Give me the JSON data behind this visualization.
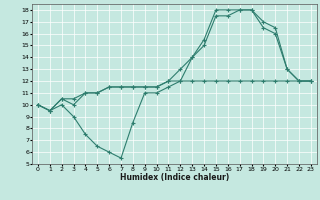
{
  "xlabel": "Humidex (Indice chaleur)",
  "background_color": "#c5e8e0",
  "line_color": "#2e7d6e",
  "xlim": [
    -0.5,
    23.5
  ],
  "ylim": [
    5,
    18.5
  ],
  "xticks": [
    0,
    1,
    2,
    3,
    4,
    5,
    6,
    7,
    8,
    9,
    10,
    11,
    12,
    13,
    14,
    15,
    16,
    17,
    18,
    19,
    20,
    21,
    22,
    23
  ],
  "yticks": [
    5,
    6,
    7,
    8,
    9,
    10,
    11,
    12,
    13,
    14,
    15,
    16,
    17,
    18
  ],
  "line1_x": [
    0,
    1,
    2,
    3,
    4,
    5,
    6,
    7,
    8,
    9,
    10,
    11,
    12,
    13,
    14,
    15,
    16,
    17,
    18,
    19,
    20,
    21,
    22,
    23
  ],
  "line1_y": [
    10,
    9.5,
    10.0,
    9.0,
    7.5,
    6.5,
    6.0,
    5.5,
    8.5,
    11.0,
    11.0,
    11.5,
    12.0,
    12.0,
    12.0,
    12.0,
    12.0,
    12.0,
    12.0,
    12.0,
    12.0,
    12.0,
    12.0,
    12.0
  ],
  "line2_x": [
    0,
    1,
    2,
    3,
    4,
    5,
    6,
    7,
    8,
    9,
    10,
    11,
    12,
    13,
    14,
    15,
    16,
    17,
    18,
    19,
    20,
    21,
    22,
    23
  ],
  "line2_y": [
    10,
    9.5,
    10.5,
    10.0,
    11.0,
    11.0,
    11.5,
    11.5,
    11.5,
    11.5,
    11.5,
    12.0,
    12.0,
    14.0,
    15.0,
    17.5,
    17.5,
    18.0,
    18.0,
    16.5,
    16.0,
    13.0,
    12.0,
    12.0
  ],
  "line3_x": [
    0,
    1,
    2,
    3,
    4,
    5,
    6,
    7,
    8,
    9,
    10,
    11,
    12,
    13,
    14,
    15,
    16,
    17,
    18,
    19,
    20,
    21,
    22,
    23
  ],
  "line3_y": [
    10,
    9.5,
    10.5,
    10.5,
    11.0,
    11.0,
    11.5,
    11.5,
    11.5,
    11.5,
    11.5,
    12.0,
    13.0,
    14.0,
    15.5,
    18.0,
    18.0,
    18.0,
    18.0,
    17.0,
    16.5,
    13.0,
    12.0,
    12.0
  ]
}
